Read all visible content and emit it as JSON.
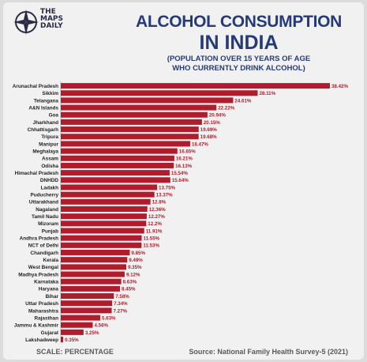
{
  "brand": {
    "line1": "THE",
    "line2": "MAPS",
    "line3": "DAILY",
    "icon": "compass-icon"
  },
  "header": {
    "title_line1": "ALCOHOL CONSUMPTION",
    "title_line2": "IN INDIA",
    "subtitle_line1": "(POPULATION OVER 15 YEARS OF AGE",
    "subtitle_line2": "WHO CURRENTLY DRINK ALCOHOL)"
  },
  "footer": {
    "scale": "SCALE: PERCENTAGE",
    "source": "Source: National Family Health Survey-5 (2021)"
  },
  "colors": {
    "bar": "#b01c2c",
    "title": "#253a78",
    "text": "#1f1f1f"
  },
  "chart_data": {
    "type": "bar",
    "orientation": "horizontal",
    "unit": "%",
    "categories": [
      "Arunachal Pradesh",
      "Sikkim",
      "Telangana",
      "A&N Islands",
      "Goa",
      "Jharkhand",
      "Chhattisgarh",
      "Tripura",
      "Manipur",
      "Meghalaya",
      "Assam",
      "Odisha",
      "Himachal Pradesh",
      "DNHDD",
      "Ladakh",
      "Puducherry",
      "Uttarakhand",
      "Nagaland",
      "Tamil Nadu",
      "Mizoram",
      "Punjab",
      "Andhra Pradesh",
      "NCT of Delhi",
      "Chandigarh",
      "Kerala",
      "West Bengal",
      "Madhya Pradesh",
      "Karnataka",
      "Haryana",
      "Bihar",
      "Uttar Pradesh",
      "Maharashtra",
      "Rajasthan",
      "Jammu & Kashmir",
      "Gujarat",
      "Lakshadweep"
    ],
    "values": [
      38.42,
      28.11,
      24.61,
      22.22,
      20.94,
      20.15,
      19.69,
      19.68,
      18.47,
      16.65,
      16.21,
      16.13,
      15.54,
      15.64,
      13.75,
      13.37,
      12.8,
      12.36,
      12.27,
      12.2,
      11.91,
      11.55,
      11.53,
      9.85,
      9.49,
      9.35,
      9.12,
      8.63,
      8.45,
      7.58,
      7.34,
      7.27,
      5.63,
      4.56,
      3.25,
      0.35
    ],
    "labels": [
      "38.42%",
      "28.11%",
      "24.61%",
      "22.22%",
      "20.94%",
      "20.15%",
      "19.69%",
      "19.68%",
      "18.47%",
      "16.65%",
      "16.21%",
      "16.13%",
      "15.54%",
      "15.64%",
      "13.75%",
      "13.37%",
      "12.8%",
      "12.36%",
      "12.27%",
      "12.2%",
      "11.91%",
      "11.55%",
      "11.53%",
      "9.85%",
      "9.49%",
      "9.35%",
      "9.12%",
      "8.63%",
      "8.45%",
      "7.58%",
      "7.34%",
      "7.27%",
      "5.63%",
      "4.56%",
      "3.25%",
      "0.35%"
    ],
    "title": "ALCOHOL CONSUMPTION IN INDIA",
    "subtitle": "(POPULATION OVER 15 YEARS OF AGE WHO CURRENTLY DRINK ALCOHOL)",
    "xlim": [
      0,
      38.42
    ],
    "grid": false,
    "legend": "none"
  }
}
